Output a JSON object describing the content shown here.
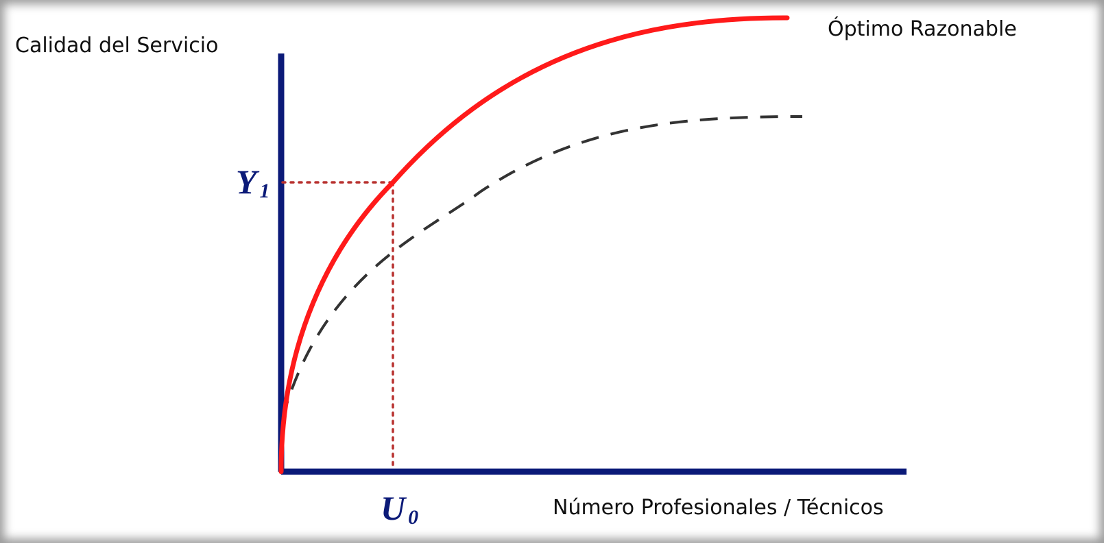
{
  "labels": {
    "y_axis": "Calidad del Servicio",
    "x_axis": "Número Profesionales / Técnicos",
    "curve_top": "Óptimo Razonable",
    "y_mark_main": "Y",
    "y_mark_sub": "1",
    "x_mark_main": "U",
    "x_mark_sub": "0"
  },
  "colors": {
    "axis": "#0b1a78",
    "curve_optimal": "#ff1a1a",
    "curve_dashed": "#333333",
    "guide_dotted": "#b8312f",
    "mark_text": "#0b1a78"
  },
  "levels": {
    "y1_fraction_of_axis": 0.68,
    "u0_fraction_of_axis": 0.18
  }
}
